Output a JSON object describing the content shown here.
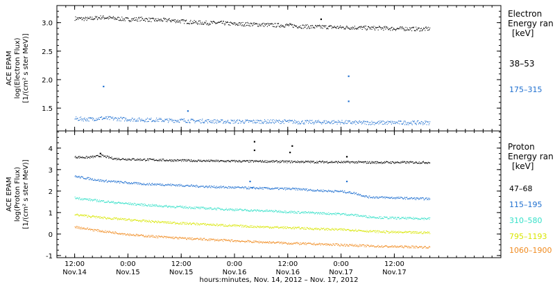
{
  "chart_data": [
    {
      "type": "scatter",
      "ylabel": [
        "ACE EPAM",
        "log(Electron Flux)",
        "[1/(cm² s ster MeV)]"
      ],
      "ylim": [
        1.1,
        3.3
      ],
      "yticks": [
        1.5,
        2.0,
        2.5,
        3.0
      ],
      "ytick_labels": [
        "1.5",
        "2.0",
        "2.5",
        "3.0"
      ],
      "legend_title": [
        "Electron",
        "Energy ran",
        "[keV]"
      ],
      "series": [
        {
          "name": "38–53",
          "color": "#000000",
          "points": [
            [
              0,
              3.08
            ],
            [
              3,
              3.07
            ],
            [
              6,
              3.1
            ],
            [
              9,
              3.08
            ],
            [
              12,
              3.06
            ],
            [
              15,
              3.07
            ],
            [
              18,
              3.05
            ],
            [
              21,
              3.05
            ],
            [
              24,
              3.03
            ],
            [
              27,
              3.01
            ],
            [
              30,
              3.0
            ],
            [
              33,
              3.0
            ],
            [
              36,
              2.98
            ],
            [
              39,
              2.98
            ],
            [
              42,
              2.97
            ],
            [
              45,
              2.96
            ],
            [
              48,
              2.96
            ],
            [
              51,
              2.94
            ],
            [
              54,
              2.93
            ],
            [
              57,
              2.93
            ],
            [
              60,
              2.92
            ],
            [
              63,
              2.92
            ],
            [
              66,
              2.91
            ],
            [
              69,
              2.91
            ],
            [
              72,
              2.9
            ],
            [
              75,
              2.9
            ],
            [
              78,
              2.89
            ],
            [
              80,
              2.9
            ]
          ],
          "spikes": [
            [
              55.5,
              3.06
            ]
          ]
        },
        {
          "name": "175–315",
          "color": "#1e6fd0",
          "points": [
            [
              0,
              1.32
            ],
            [
              3,
              1.31
            ],
            [
              6,
              1.33
            ],
            [
              9,
              1.32
            ],
            [
              12,
              1.31
            ],
            [
              15,
              1.3
            ],
            [
              18,
              1.3
            ],
            [
              21,
              1.29
            ],
            [
              24,
              1.29
            ],
            [
              27,
              1.28
            ],
            [
              30,
              1.28
            ],
            [
              33,
              1.27
            ],
            [
              36,
              1.27
            ],
            [
              39,
              1.27
            ],
            [
              42,
              1.27
            ],
            [
              45,
              1.27
            ],
            [
              48,
              1.27
            ],
            [
              51,
              1.26
            ],
            [
              54,
              1.26
            ],
            [
              57,
              1.26
            ],
            [
              60,
              1.26
            ],
            [
              63,
              1.25
            ],
            [
              66,
              1.25
            ],
            [
              69,
              1.25
            ],
            [
              72,
              1.25
            ],
            [
              75,
              1.25
            ],
            [
              78,
              1.25
            ],
            [
              80,
              1.25
            ]
          ],
          "spikes": [
            [
              6.5,
              1.88
            ],
            [
              61.7,
              2.06
            ],
            [
              61.7,
              1.62
            ],
            [
              25.5,
              1.45
            ]
          ]
        }
      ]
    },
    {
      "type": "scatter",
      "ylabel": [
        "ACE EPAM",
        "log(Proton Flux)",
        "[1/(cm² s ster MeV)]"
      ],
      "ylim": [
        -1.1,
        4.8
      ],
      "yticks": [
        -1,
        0,
        1,
        2,
        3,
        4
      ],
      "ytick_labels": [
        "-1",
        "0",
        "1",
        "2",
        "3",
        "4"
      ],
      "legend_title": [
        "Proton",
        "Energy ran",
        "[keV]"
      ],
      "series": [
        {
          "name": "47–68",
          "color": "#000000",
          "points": [
            [
              0,
              3.6
            ],
            [
              3,
              3.58
            ],
            [
              6,
              3.66
            ],
            [
              9,
              3.52
            ],
            [
              12,
              3.5
            ],
            [
              15,
              3.48
            ],
            [
              18,
              3.47
            ],
            [
              21,
              3.45
            ],
            [
              24,
              3.44
            ],
            [
              27,
              3.43
            ],
            [
              30,
              3.42
            ],
            [
              33,
              3.41
            ],
            [
              36,
              3.41
            ],
            [
              39,
              3.4
            ],
            [
              42,
              3.4
            ],
            [
              45,
              3.39
            ],
            [
              48,
              3.38
            ],
            [
              51,
              3.38
            ],
            [
              54,
              3.37
            ],
            [
              57,
              3.37
            ],
            [
              60,
              3.36
            ],
            [
              63,
              3.36
            ],
            [
              66,
              3.35
            ],
            [
              69,
              3.35
            ],
            [
              72,
              3.35
            ],
            [
              75,
              3.35
            ],
            [
              78,
              3.35
            ],
            [
              80,
              3.35
            ]
          ],
          "spikes": [
            [
              5.8,
              3.75
            ],
            [
              40.5,
              4.3
            ],
            [
              40.5,
              3.9
            ],
            [
              49.0,
              4.1
            ],
            [
              48.5,
              3.8
            ],
            [
              61.3,
              3.6
            ]
          ]
        },
        {
          "name": "115–195",
          "color": "#1e6fd0",
          "points": [
            [
              0,
              2.7
            ],
            [
              3,
              2.6
            ],
            [
              6,
              2.5
            ],
            [
              9,
              2.45
            ],
            [
              12,
              2.4
            ],
            [
              15,
              2.35
            ],
            [
              18,
              2.33
            ],
            [
              21,
              2.31
            ],
            [
              24,
              2.28
            ],
            [
              27,
              2.25
            ],
            [
              30,
              2.22
            ],
            [
              33,
              2.2
            ],
            [
              36,
              2.18
            ],
            [
              39,
              2.16
            ],
            [
              42,
              2.15
            ],
            [
              45,
              2.13
            ],
            [
              48,
              2.12
            ],
            [
              51,
              2.1
            ],
            [
              54,
              2.05
            ],
            [
              57,
              2.02
            ],
            [
              60,
              2.0
            ],
            [
              63,
              1.92
            ],
            [
              66,
              1.74
            ],
            [
              69,
              1.72
            ],
            [
              72,
              1.7
            ],
            [
              75,
              1.68
            ],
            [
              78,
              1.66
            ],
            [
              80,
              1.65
            ]
          ],
          "spikes": [
            [
              39.5,
              2.45
            ],
            [
              61.3,
              2.45
            ],
            [
              40.0,
              2.15
            ]
          ]
        },
        {
          "name": "310–580",
          "color": "#34e0c8",
          "points": [
            [
              0,
              1.7
            ],
            [
              3,
              1.62
            ],
            [
              6,
              1.55
            ],
            [
              9,
              1.48
            ],
            [
              12,
              1.43
            ],
            [
              15,
              1.38
            ],
            [
              18,
              1.34
            ],
            [
              21,
              1.3
            ],
            [
              24,
              1.27
            ],
            [
              27,
              1.24
            ],
            [
              30,
              1.21
            ],
            [
              33,
              1.18
            ],
            [
              36,
              1.15
            ],
            [
              39,
              1.12
            ],
            [
              42,
              1.1
            ],
            [
              45,
              1.08
            ],
            [
              48,
              1.05
            ],
            [
              51,
              1.02
            ],
            [
              54,
              1.0
            ],
            [
              57,
              0.97
            ],
            [
              60,
              0.95
            ],
            [
              63,
              0.9
            ],
            [
              66,
              0.82
            ],
            [
              69,
              0.78
            ],
            [
              72,
              0.76
            ],
            [
              75,
              0.75
            ],
            [
              78,
              0.74
            ],
            [
              80,
              0.73
            ]
          ],
          "spikes": []
        },
        {
          "name": "795–1193",
          "color": "#d8e600",
          "points": [
            [
              0,
              0.92
            ],
            [
              3,
              0.85
            ],
            [
              6,
              0.78
            ],
            [
              9,
              0.73
            ],
            [
              12,
              0.68
            ],
            [
              15,
              0.63
            ],
            [
              18,
              0.59
            ],
            [
              21,
              0.55
            ],
            [
              24,
              0.52
            ],
            [
              27,
              0.49
            ],
            [
              30,
              0.46
            ],
            [
              33,
              0.43
            ],
            [
              36,
              0.4
            ],
            [
              39,
              0.37
            ],
            [
              42,
              0.35
            ],
            [
              45,
              0.33
            ],
            [
              48,
              0.31
            ],
            [
              51,
              0.29
            ],
            [
              54,
              0.26
            ],
            [
              57,
              0.24
            ],
            [
              60,
              0.22
            ],
            [
              63,
              0.2
            ],
            [
              66,
              0.15
            ],
            [
              69,
              0.12
            ],
            [
              72,
              0.1
            ],
            [
              75,
              0.09
            ],
            [
              78,
              0.08
            ],
            [
              80,
              0.08
            ]
          ],
          "spikes": []
        },
        {
          "name": "1060–1900",
          "color": "#f08a1e",
          "points": [
            [
              0,
              0.35
            ],
            [
              3,
              0.25
            ],
            [
              6,
              0.15
            ],
            [
              9,
              0.08
            ],
            [
              12,
              0.0
            ],
            [
              15,
              -0.06
            ],
            [
              18,
              -0.1
            ],
            [
              21,
              -0.14
            ],
            [
              24,
              -0.18
            ],
            [
              27,
              -0.21
            ],
            [
              30,
              -0.24
            ],
            [
              33,
              -0.27
            ],
            [
              36,
              -0.3
            ],
            [
              39,
              -0.33
            ],
            [
              42,
              -0.36
            ],
            [
              45,
              -0.38
            ],
            [
              48,
              -0.41
            ],
            [
              51,
              -0.43
            ],
            [
              54,
              -0.45
            ],
            [
              57,
              -0.47
            ],
            [
              60,
              -0.49
            ],
            [
              63,
              -0.51
            ],
            [
              66,
              -0.54
            ],
            [
              69,
              -0.56
            ],
            [
              72,
              -0.57
            ],
            [
              75,
              -0.58
            ],
            [
              78,
              -0.59
            ],
            [
              80,
              -0.6
            ]
          ],
          "spikes": []
        }
      ]
    }
  ],
  "x_axis": {
    "xlim": [
      -4,
      96
    ],
    "ticks": [
      {
        "t": 0,
        "time": "12:00",
        "date": "Nov.14"
      },
      {
        "t": 12,
        "time": "0:00",
        "date": "Nov.15"
      },
      {
        "t": 24,
        "time": "12:00",
        "date": "Nov.15"
      },
      {
        "t": 36,
        "time": "0:00",
        "date": "Nov.16"
      },
      {
        "t": 48,
        "time": "12:00",
        "date": "Nov.16"
      },
      {
        "t": 60,
        "time": "0:00",
        "date": "Nov.17"
      },
      {
        "t": 72,
        "time": "12:00",
        "date": "Nov.17"
      }
    ],
    "xlabel": "hours:minutes, Nov. 14, 2012 – Nov. 17, 2012"
  }
}
